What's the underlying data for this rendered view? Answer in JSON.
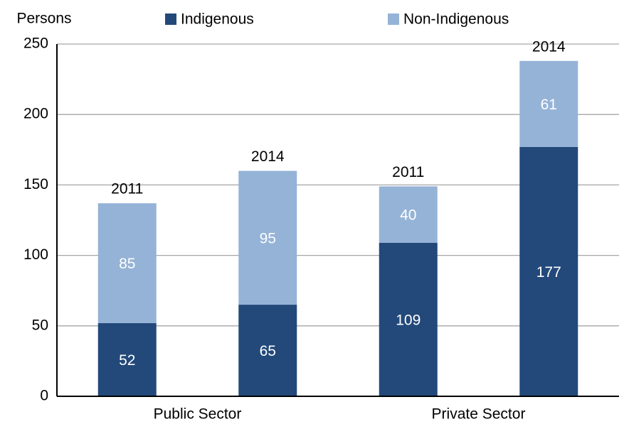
{
  "chart_data": {
    "type": "stacked_bar",
    "y_label": "Persons",
    "categories": [
      "2011",
      "2014",
      "2011",
      "2014"
    ],
    "groups": [
      "Public Sector",
      "Private Sector"
    ],
    "series": [
      {
        "name": "Indigenous",
        "color": "#23497a",
        "values": [
          52,
          65,
          109,
          177
        ]
      },
      {
        "name": "Non-Indigenous",
        "color": "#95b3d7",
        "values": [
          85,
          95,
          40,
          61
        ]
      }
    ],
    "ylim": [
      0,
      250
    ],
    "yticks": [
      0,
      50,
      100,
      150,
      200,
      250
    ],
    "grid": true,
    "legend": "top"
  }
}
